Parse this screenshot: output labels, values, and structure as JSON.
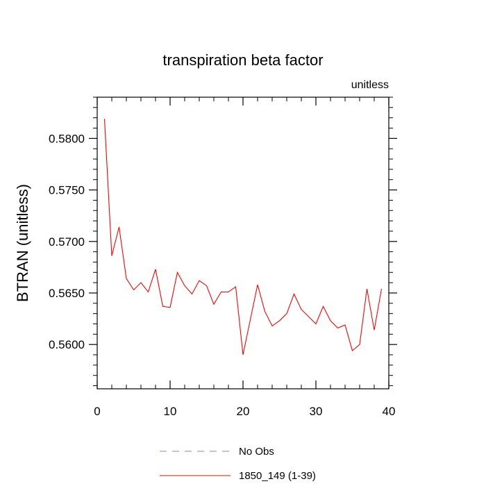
{
  "chart_data": {
    "type": "line",
    "title": "transpiration beta factor",
    "units_label": "unitless",
    "xlabel": "",
    "ylabel": "BTRAN  (unitless)",
    "xlim": [
      0,
      40
    ],
    "ylim": [
      0.5557,
      0.584
    ],
    "x_ticks": [
      0,
      10,
      20,
      30,
      40
    ],
    "x_tick_labels": [
      "0",
      "10",
      "20",
      "30",
      "40"
    ],
    "x_minor_step": 2,
    "y_ticks": [
      0.56,
      0.565,
      0.57,
      0.575,
      0.58
    ],
    "y_tick_labels": [
      "0.5600",
      "0.5650",
      "0.5700",
      "0.5750",
      "0.5800"
    ],
    "y_minor_step": 0.001,
    "grid": false,
    "legend": [
      {
        "label": "No Obs",
        "color": "#8080ff",
        "style": "dashed"
      },
      {
        "label": "1850_149 (1-39)",
        "color": "#ff0000",
        "style": "solid"
      }
    ],
    "series": [
      {
        "name": "1850_149 (1-39)",
        "color": "#ff0000",
        "x": [
          1,
          2,
          3,
          4,
          5,
          6,
          7,
          8,
          9,
          10,
          11,
          12,
          13,
          14,
          15,
          16,
          17,
          18,
          19,
          20,
          21,
          22,
          23,
          24,
          25,
          26,
          27,
          28,
          29,
          30,
          31,
          32,
          33,
          34,
          35,
          36,
          37,
          38,
          39
        ],
        "values": [
          0.5819,
          0.5686,
          0.5714,
          0.5664,
          0.5653,
          0.566,
          0.5651,
          0.5673,
          0.5637,
          0.5636,
          0.567,
          0.5657,
          0.5649,
          0.5662,
          0.5657,
          0.5639,
          0.5651,
          0.5651,
          0.5656,
          0.559,
          0.5624,
          0.5658,
          0.5632,
          0.5618,
          0.5623,
          0.563,
          0.5649,
          0.5634,
          0.5627,
          0.562,
          0.5637,
          0.5623,
          0.5616,
          0.5619,
          0.5594,
          0.56,
          0.5654,
          0.5614,
          0.5654
        ]
      }
    ]
  }
}
